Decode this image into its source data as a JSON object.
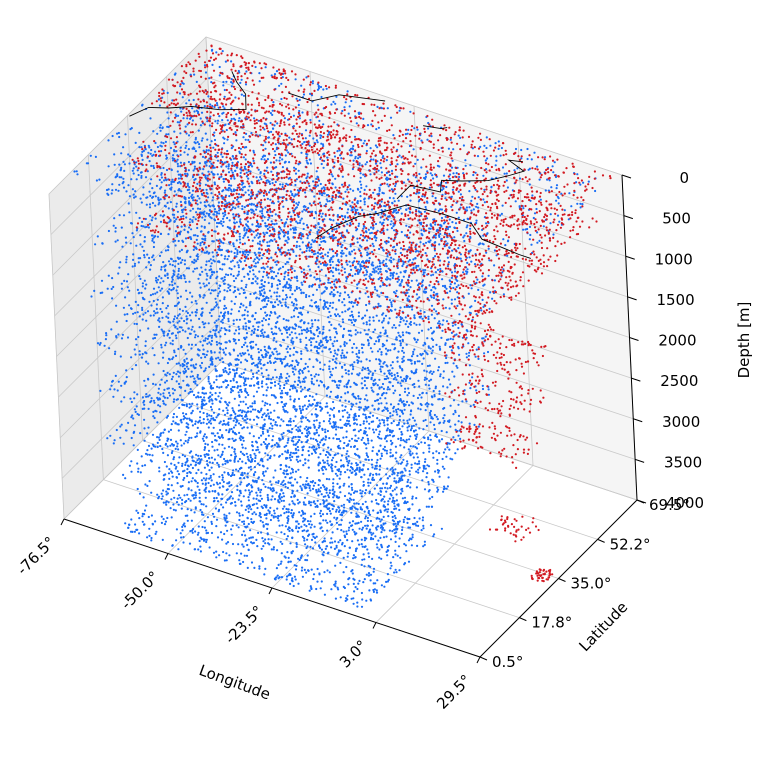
{
  "chart_data": {
    "type": "scatter",
    "projection": "3d",
    "title": "",
    "xlabel": "Longitude",
    "ylabel": "Latitude",
    "zlabel": "Depth [m]",
    "x_ticks": [
      "-76.5°",
      "-50.0°",
      "-23.5°",
      "3.0°",
      "29.5°"
    ],
    "x_tick_values": [
      -76.5,
      -50.0,
      -23.5,
      3.0,
      29.5
    ],
    "y_ticks": [
      "0.5°",
      "17.8°",
      "35.0°",
      "52.2°",
      "69.5°"
    ],
    "y_tick_values": [
      0.5,
      17.8,
      35.0,
      52.2,
      69.5
    ],
    "z_ticks": [
      "0",
      "500",
      "1000",
      "1500",
      "2000",
      "2500",
      "3000",
      "3500",
      "4000"
    ],
    "z_tick_values": [
      0,
      500,
      1000,
      1500,
      2000,
      2500,
      3000,
      3500,
      4000
    ],
    "xlim": [
      -76.5,
      29.5
    ],
    "ylim": [
      0.5,
      69.5
    ],
    "zlim": [
      0,
      4000
    ],
    "z_inverted": true,
    "grid": true,
    "coastlines": true,
    "series": [
      {
        "color": "#1a6ef5",
        "regions": [
          {
            "lon": [
              -76,
              28
            ],
            "lat": [
              10,
              68
            ],
            "depth": 0
          },
          {
            "lon": [
              -76,
              0
            ],
            "lat": [
              20,
              62
            ],
            "depth": 500
          },
          {
            "lon": [
              -76,
              3
            ],
            "lat": [
              15,
              60
            ],
            "depth": 1000
          },
          {
            "lon": [
              -74,
              5
            ],
            "lat": [
              10,
              58
            ],
            "depth": 1500
          },
          {
            "lon": [
              -72,
              5
            ],
            "lat": [
              8,
              55
            ],
            "depth": 2000
          },
          {
            "lon": [
              -70,
              5
            ],
            "lat": [
              6,
              52
            ],
            "depth": 2500
          },
          {
            "lon": [
              -68,
              3
            ],
            "lat": [
              5,
              50
            ],
            "depth": 3000
          },
          {
            "lon": [
              -66,
              0
            ],
            "lat": [
              4,
              45
            ],
            "depth": 3500
          },
          {
            "lon": [
              -64,
              -2
            ],
            "lat": [
              3,
              40
            ],
            "depth": 4000
          }
        ]
      },
      {
        "color": "#d21a22",
        "regions": [
          {
            "lon": [
              -76,
              28
            ],
            "lat": [
              40,
              68
            ],
            "depth": 0
          },
          {
            "lon": [
              -76,
              25
            ],
            "lat": [
              30,
              66
            ],
            "depth": 500
          },
          {
            "lon": [
              -70,
              15
            ],
            "lat": [
              25,
              62
            ],
            "depth": 1000
          },
          {
            "lon": [
              5,
              26
            ],
            "lat": [
              30,
              45
            ],
            "depth": 1500
          },
          {
            "lon": [
              5,
              25
            ],
            "lat": [
              30,
              42
            ],
            "depth": 2000
          },
          {
            "lon": [
              5,
              25
            ],
            "lat": [
              28,
              40
            ],
            "depth": 2500
          },
          {
            "lon": [
              15,
              24
            ],
            "lat": [
              30,
              38
            ],
            "depth": 3500
          },
          {
            "lon": [
              24,
              28
            ],
            "lat": [
              32,
              36
            ],
            "depth": 4000
          }
        ]
      }
    ]
  }
}
